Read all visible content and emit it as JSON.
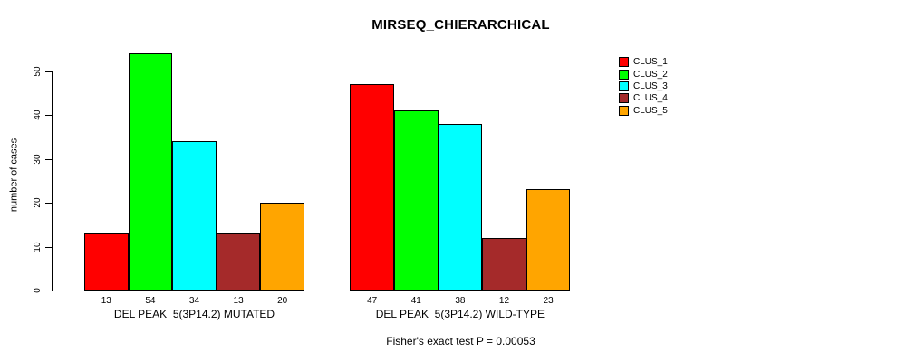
{
  "title": "MIRSEQ_CHIERARCHICAL",
  "subtitle": "Fisher's exact test P = 0.00053",
  "ylabel": "number of cases",
  "chart_data": {
    "type": "bar",
    "title": "MIRSEQ_CHIERARCHICAL",
    "xlabel": "",
    "ylabel": "number of cases",
    "annotation": "Fisher's exact test P = 0.00053",
    "grid": false,
    "legend_position": "top-right",
    "ylim": [
      0,
      50
    ],
    "yticks": [
      0,
      10,
      20,
      30,
      40,
      50
    ],
    "series_names": [
      "CLUS_1",
      "CLUS_2",
      "CLUS_3",
      "CLUS_4",
      "CLUS_5"
    ],
    "colors": [
      "#ff0000",
      "#00ff00",
      "#00ffff",
      "#a52a2a",
      "#ffa500"
    ],
    "bar_border_color": "#000000",
    "groups": [
      {
        "label": "DEL PEAK  5(3P14.2) MUTATED",
        "values": [
          13,
          54,
          34,
          13,
          20
        ]
      },
      {
        "label": "DEL PEAK  5(3P14.2) WILD-TYPE",
        "values": [
          47,
          41,
          38,
          12,
          23
        ]
      }
    ]
  }
}
